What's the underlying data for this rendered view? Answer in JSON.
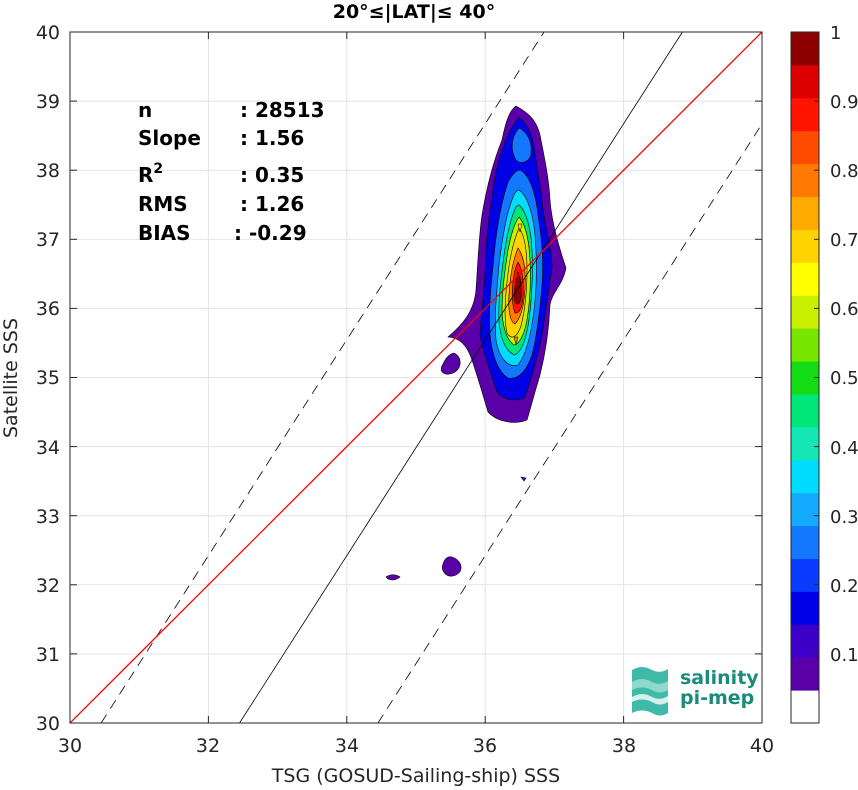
{
  "chart_data": {
    "type": "contour-density-scatter",
    "title": "20°≤|LAT|≤ 40°",
    "xlabel": "TSG (GOSUD-Sailing-ship) SSS",
    "ylabel": "Satellite SSS",
    "xlim": [
      30,
      40
    ],
    "ylim": [
      30,
      40
    ],
    "xticks": [
      "30",
      "32",
      "34",
      "36",
      "38",
      "40"
    ],
    "yticks": [
      "30",
      "31",
      "32",
      "33",
      "34",
      "35",
      "36",
      "37",
      "38",
      "39",
      "40"
    ],
    "grid": true,
    "stats": [
      {
        "label": "n",
        "value": ": 28513"
      },
      {
        "label": "Slope",
        "value": ": 1.56"
      },
      {
        "label": "R",
        "sup": "2",
        "value": ": 0.35"
      },
      {
        "label": "RMS",
        "value": ": 1.26"
      },
      {
        "label": "BIAS",
        "value": ": -0.29"
      }
    ],
    "reference_lines": {
      "one_to_one": {
        "color": "#ff0000",
        "points": [
          [
            30,
            30
          ],
          [
            40,
            40
          ]
        ]
      },
      "fit": {
        "color": "#000000",
        "style": "solid",
        "points": [
          [
            32.45,
            30
          ],
          [
            38.85,
            40
          ]
        ]
      },
      "bounds": [
        {
          "color": "#000000",
          "style": "dashed",
          "points": [
            [
              30.45,
              30
            ],
            [
              36.85,
              40
            ]
          ]
        },
        {
          "color": "#000000",
          "style": "dashed",
          "points": [
            [
              34.45,
              30
            ],
            [
              40,
              38.67
            ]
          ]
        }
      ]
    },
    "density_peak": {
      "x": 36.5,
      "y": 36.3
    },
    "colorbar": {
      "range": [
        0,
        1
      ],
      "ticks": [
        "0.1",
        "0.2",
        "0.3",
        "0.4",
        "0.5",
        "0.6",
        "0.7",
        "0.8",
        "0.9",
        "1"
      ],
      "levels": [
        "#ffffff",
        "#5a00a8",
        "#3c00c8",
        "#0000e6",
        "#0a3cff",
        "#1478ff",
        "#14aaff",
        "#00dcff",
        "#14e6b4",
        "#00e678",
        "#14dc14",
        "#78e600",
        "#c8f000",
        "#ffff00",
        "#ffd200",
        "#ffaa00",
        "#ff7800",
        "#ff4b00",
        "#ff1400",
        "#dc0000",
        "#8c0000"
      ]
    }
  },
  "logo": {
    "line1": "salinity",
    "line2": "pi-mep"
  }
}
